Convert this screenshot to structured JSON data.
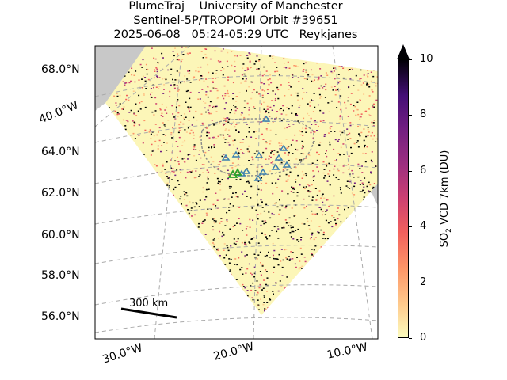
{
  "header": {
    "line1": "PlumeTraj    University of Manchester",
    "line2": "Sentinel-5P/TROPOMI Orbit #39651",
    "line3": "2025-06-08   05:24-05:29 UTC   Reykjanes"
  },
  "axes": {
    "lat_labels": [
      "68.0°N",
      "64.0°N",
      "62.0°N",
      "60.0°N",
      "58.0°N",
      "56.0°N"
    ],
    "lon_labels": [
      "40.0°W",
      "30.0°W",
      "20.0°W",
      "10.0°W"
    ]
  },
  "scale_bar": {
    "label": "300 km"
  },
  "colorbar": {
    "label_main": "SO",
    "label_sub": "2",
    "label_rest": " VCD 7km (DU)",
    "ticks": [
      "0",
      "2",
      "4",
      "6",
      "8",
      "10"
    ],
    "vmin": 0,
    "vmax": 10,
    "extend": "max",
    "colormap": "magma_r"
  },
  "colors": {
    "ocean": "#ffffff",
    "land_outside": "#c8c8c8",
    "background_value": "#fcf6b8",
    "volcano_marker": "#2ca02c",
    "triangle_marker": "#3b7fb0"
  }
}
